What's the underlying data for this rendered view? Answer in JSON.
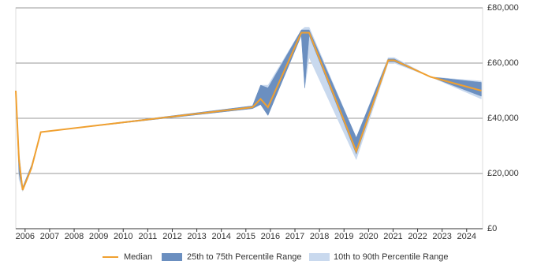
{
  "chart_data": {
    "type": "line",
    "x": [
      2005.62,
      2005.75,
      2005.9,
      2006.26,
      2006.64,
      2015.27,
      2015.6,
      2015.9,
      2017.26,
      2017.4,
      2017.58,
      2019.5,
      2020.8,
      2021.05,
      2022.53,
      2024.6
    ],
    "series": [
      {
        "name": "Median",
        "color": "#f0a030",
        "values": [
          50000,
          25000,
          14000,
          22000,
          35000,
          44000,
          47000,
          44000,
          71000,
          71000,
          71000,
          28000,
          61000,
          61000,
          55000,
          50000
        ]
      }
    ],
    "bands": [
      {
        "name": "10th to 90th Percentile Range",
        "color": "#c9d9ee",
        "lower": [
          50000,
          18000,
          13500,
          22000,
          35000,
          43500,
          45000,
          41000,
          70000,
          51000,
          62000,
          25000,
          60000,
          60000,
          55000,
          47000
        ],
        "upper": [
          50000,
          28000,
          15000,
          23000,
          35000,
          44500,
          52000,
          52000,
          72000,
          73000,
          73000,
          33000,
          62000,
          62000,
          55000,
          53500
        ]
      },
      {
        "name": "25th to 75th Percentile Range",
        "color": "#6b8fc0",
        "lower": [
          50000,
          20000,
          14000,
          22000,
          35000,
          43500,
          45000,
          41000,
          70000,
          51000,
          70000,
          27000,
          60500,
          60500,
          55000,
          48000
        ],
        "upper": [
          50000,
          27000,
          15000,
          23000,
          35000,
          44500,
          52000,
          51000,
          72000,
          72000,
          72000,
          33000,
          61500,
          61500,
          55000,
          53000
        ]
      }
    ],
    "xlim": [
      2005.62,
      2024.65
    ],
    "xticks": [
      2006,
      2007,
      2008,
      2009,
      2010,
      2011,
      2012,
      2013,
      2014,
      2015,
      2016,
      2017,
      2018,
      2019,
      2020,
      2021,
      2022,
      2023,
      2024
    ],
    "ylim": [
      0,
      80000
    ],
    "yticks": [
      {
        "value": 0,
        "label": "£0"
      },
      {
        "value": 20000,
        "label": "£20,000"
      },
      {
        "value": 40000,
        "label": "£40,000"
      },
      {
        "value": 60000,
        "label": "£60,000"
      },
      {
        "value": 80000,
        "label": "£80,000"
      }
    ],
    "grid": true
  }
}
